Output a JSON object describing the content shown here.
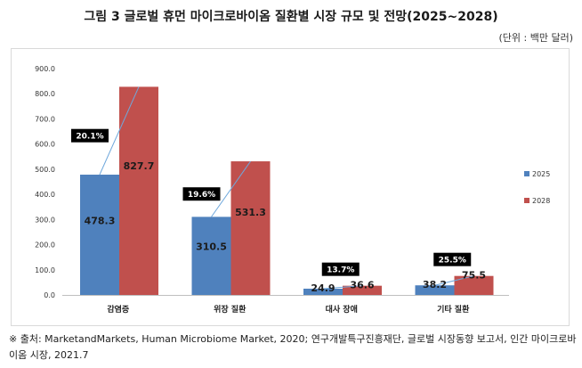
{
  "header": {
    "title": "그림 3 글로벌 휴먼 마이크로바이옴 질환별 시장 규모 및 전망(2025~2028)",
    "unit": "(단위 : 백만 달러)"
  },
  "chart_data": {
    "type": "bar",
    "title": "그림 3 글로벌 휴먼 마이크로바이옴 질환별 시장 규모 및 전망(2025~2028)",
    "xlabel": "",
    "ylabel": "백만 달러",
    "ylim": [
      0,
      900
    ],
    "yticks": [
      "0.0",
      "100.0",
      "200.0",
      "300.0",
      "400.0",
      "500.0",
      "600.0",
      "700.0",
      "800.0",
      "900.0"
    ],
    "categories": [
      "감염증",
      "위장 질환",
      "대사 장애",
      "기타 질환"
    ],
    "series": [
      {
        "name": "2025",
        "color": "#4f81bd",
        "values": [
          478.3,
          310.5,
          24.9,
          38.2
        ],
        "labels": [
          "478.3",
          "310.5",
          "24.9",
          "38.2"
        ]
      },
      {
        "name": "2028",
        "color": "#c0504d",
        "values": [
          827.7,
          531.3,
          36.6,
          75.5
        ],
        "labels": [
          "827.7",
          "531.3",
          "36.6",
          "75.5"
        ]
      }
    ],
    "cagr": [
      "20.1%",
      "19.6%",
      "13.7%",
      "25.5%"
    ],
    "legend": "right",
    "grid": false
  },
  "footer": {
    "source": "※ 출처: MarketandMarkets, Human Microbiome Market, 2020; 연구개발특구진흥재단, 글로벌 시장동향 보고서, 인간 마이크로바이옴 시장, 2021.7"
  }
}
